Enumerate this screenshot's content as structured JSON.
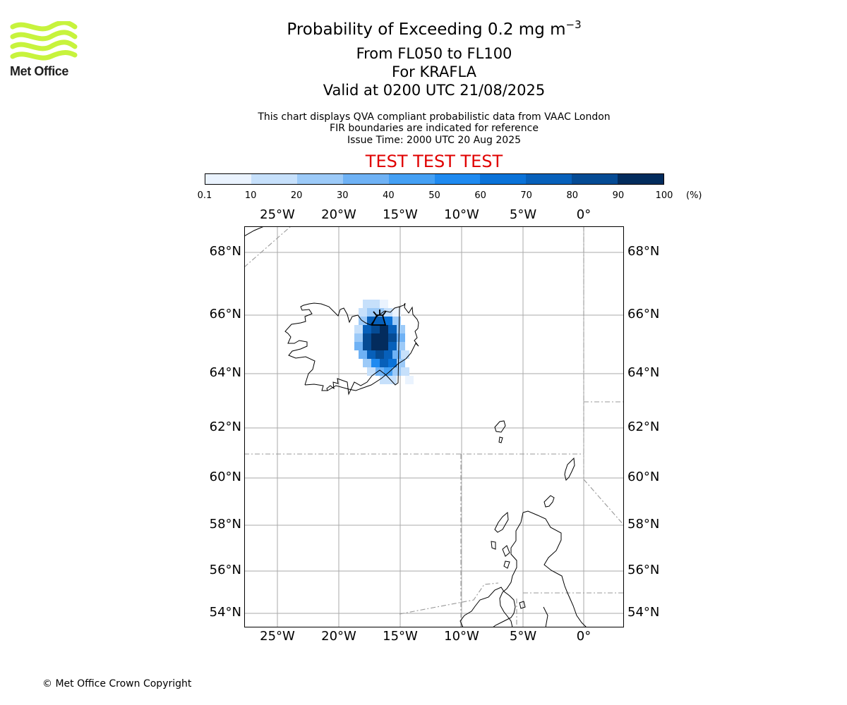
{
  "logo": {
    "text": "Met Office",
    "color": "#c7f33d"
  },
  "header": {
    "title_main": "Probability of Exceeding 0.2 mg m",
    "title_sup": "−3",
    "level_range": "From FL050 to FL100",
    "volcano_line": "For KRAFLA",
    "valid_line": "Valid at 0200 UTC 21/08/2025"
  },
  "notes": {
    "line1": "This chart displays QVA compliant probabilistic data from VAAC London",
    "line2": "FIR boundaries are indicated for reference",
    "line3": "Issue Time: 2000 UTC 20 Aug 2025"
  },
  "banner": {
    "text": "TEST TEST TEST",
    "color": "#e00000"
  },
  "colorbar": {
    "ticks": [
      "0.1",
      "10",
      "20",
      "30",
      "40",
      "50",
      "60",
      "70",
      "80",
      "90",
      "100"
    ],
    "unit": "(%)",
    "colors": [
      "#eaf3fe",
      "#c6e0fb",
      "#9ccaf8",
      "#6fb2f5",
      "#45a0f4",
      "#1f8af0",
      "#0a72d8",
      "#0760ba",
      "#054b94",
      "#032c5d"
    ]
  },
  "map": {
    "lon_labels": [
      "25°W",
      "20°W",
      "15°W",
      "10°W",
      "5°W",
      "0°"
    ],
    "lat_labels": [
      "68°N",
      "66°N",
      "64°N",
      "62°N",
      "60°N",
      "58°N",
      "56°N",
      "54°N"
    ],
    "volcano_name": "KRAFLA",
    "volcano_marker_icon": "volcano-icon",
    "gridline_color": "#aaaaaa",
    "fir_boundary_color": "#999999"
  },
  "footer": {
    "copyright": "© Met Office Crown Copyright"
  }
}
